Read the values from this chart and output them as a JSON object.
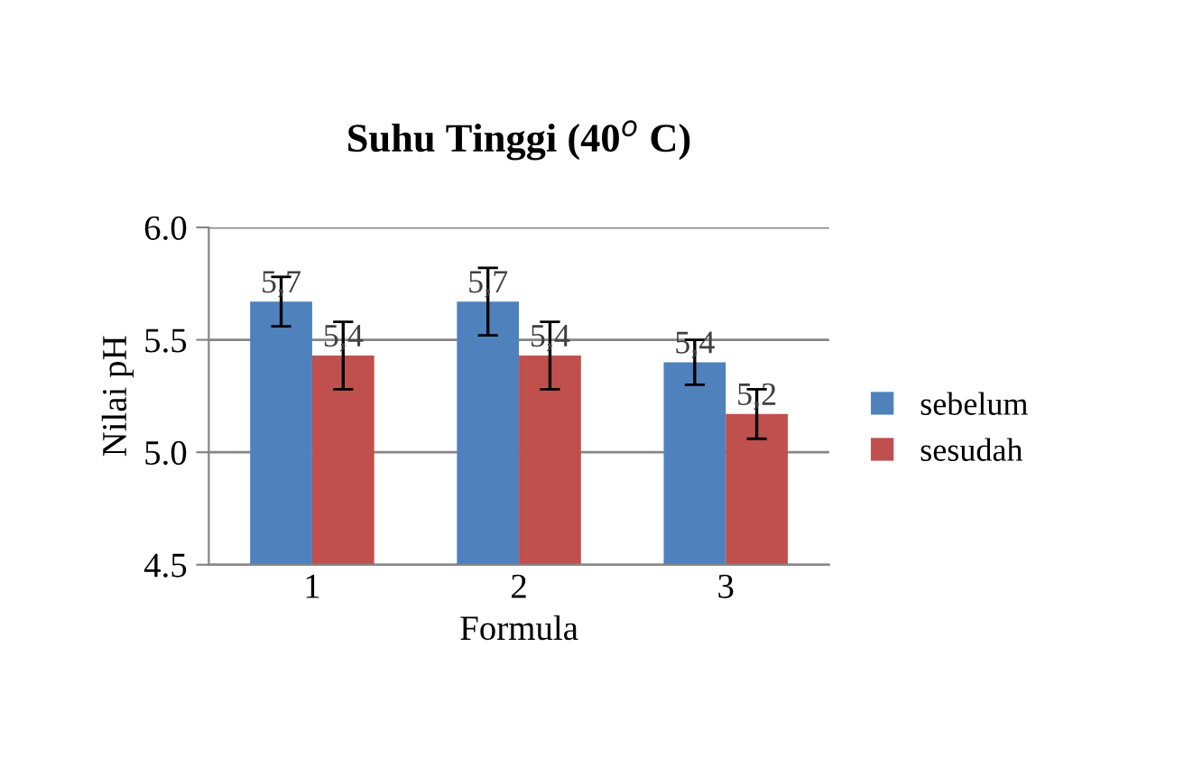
{
  "chart_data": {
    "type": "bar",
    "title": "Suhu Tinggi (40$^{o}$ C)",
    "xlabel": "Formula",
    "ylabel": "Nilai pH",
    "categories": [
      "1",
      "2",
      "3"
    ],
    "series": [
      {
        "name": "sebelum",
        "color": "#4f81bd",
        "values": [
          5.67,
          5.67,
          5.4
        ],
        "errors": [
          0.11,
          0.15,
          0.1
        ],
        "value_labels": [
          "5,7",
          "5,7",
          "5,4"
        ]
      },
      {
        "name": "sesudah",
        "color": "#c0504d",
        "values": [
          5.43,
          5.43,
          5.17
        ],
        "errors": [
          0.15,
          0.15,
          0.11
        ],
        "value_labels": [
          "5,4",
          "5,4",
          "5,2"
        ]
      }
    ],
    "ylim": [
      4.5,
      6.0
    ],
    "yticks": [
      {
        "value": 4.5,
        "label": "4.5"
      },
      {
        "value": 5.0,
        "label": "5.0"
      },
      {
        "value": 5.5,
        "label": "5.5"
      },
      {
        "value": 6.0,
        "label": "6.0"
      }
    ],
    "grid": "y",
    "legend": "right"
  }
}
